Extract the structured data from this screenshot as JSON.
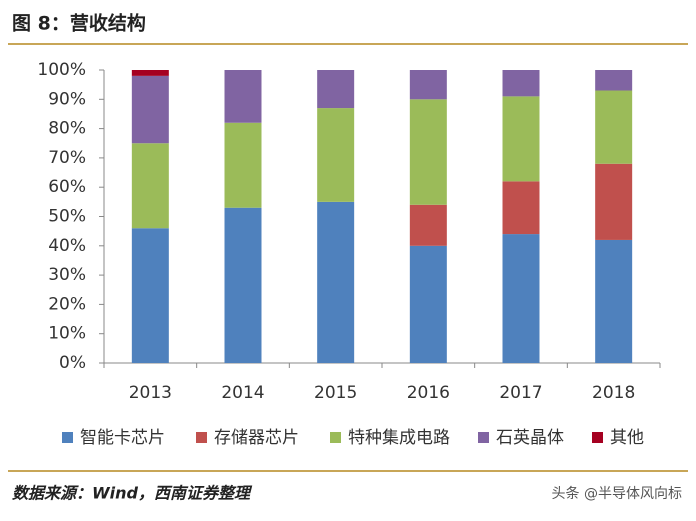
{
  "header": {
    "title": "图 8：营收结构"
  },
  "chart_data": {
    "type": "stacked-bar",
    "categories": [
      "2013",
      "2014",
      "2015",
      "2016",
      "2017",
      "2018"
    ],
    "series": [
      {
        "name": "智能卡芯片",
        "color": "#4f81bd",
        "values": [
          46,
          53,
          55,
          40,
          44,
          42
        ]
      },
      {
        "name": "存储器芯片",
        "color": "#c0504d",
        "values": [
          0,
          0,
          0,
          14,
          18,
          26
        ]
      },
      {
        "name": "特种集成电路",
        "color": "#9bbb59",
        "values": [
          29,
          29,
          32,
          36,
          29,
          25
        ]
      },
      {
        "name": "石英晶体",
        "color": "#8064a2",
        "values": [
          23,
          18,
          13,
          10,
          9,
          7
        ]
      },
      {
        "name": "其他",
        "color": "#a50021",
        "values": [
          2,
          0,
          0,
          0,
          0,
          0
        ]
      }
    ],
    "ylim": [
      0,
      100
    ],
    "yticks": [
      {
        "value": 0,
        "label": "0%"
      },
      {
        "value": 10,
        "label": "10%"
      },
      {
        "value": 20,
        "label": "20%"
      },
      {
        "value": 30,
        "label": "30%"
      },
      {
        "value": 40,
        "label": "40%"
      },
      {
        "value": 50,
        "label": "50%"
      },
      {
        "value": 60,
        "label": "60%"
      },
      {
        "value": 70,
        "label": "70%"
      },
      {
        "value": 80,
        "label": "80%"
      },
      {
        "value": 90,
        "label": "90%"
      },
      {
        "value": 100,
        "label": "100%"
      }
    ],
    "legend": "bottom"
  },
  "footer": {
    "source": "数据来源：Wind，西南证券整理",
    "watermark": "头条 @半导体风向标"
  }
}
